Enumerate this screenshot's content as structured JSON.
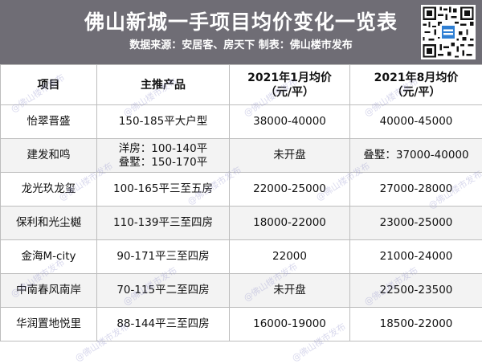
{
  "header": {
    "title": "佛山新城一手项目均价变化一览表",
    "subtitle": "数据来源：安居客、房天下  制表：佛山楼市发布"
  },
  "table": {
    "columns": [
      "项目",
      "主推产品",
      "2021年1月均价\n（元/平）",
      "2021年8月均价\n（元/平）"
    ],
    "rows": [
      [
        "怡翠晋盛",
        "150-185平大户型",
        "38000-40000",
        "40000-45000"
      ],
      [
        "建发和鸣",
        "洋房：100-140平\n叠墅：150-170平",
        "未开盘",
        "叠墅：37000-40000"
      ],
      [
        "龙光玖龙玺",
        "100-165平三至五房",
        "22000-25000",
        "27000-28000"
      ],
      [
        "保利和光尘樾",
        "110-139平三至四房",
        "18000-22000",
        "23000-25000"
      ],
      [
        "金海M-city",
        "90-171平三至四房",
        "22000",
        "21000-24000"
      ],
      [
        "中南春风南岸",
        "70-115平二至四房",
        "未开盘",
        "22500-23500"
      ],
      [
        "华润置地悦里",
        "88-144平三至四房",
        "16000-19000",
        "18500-22000"
      ]
    ]
  },
  "watermark": "@佛山楼市发布"
}
